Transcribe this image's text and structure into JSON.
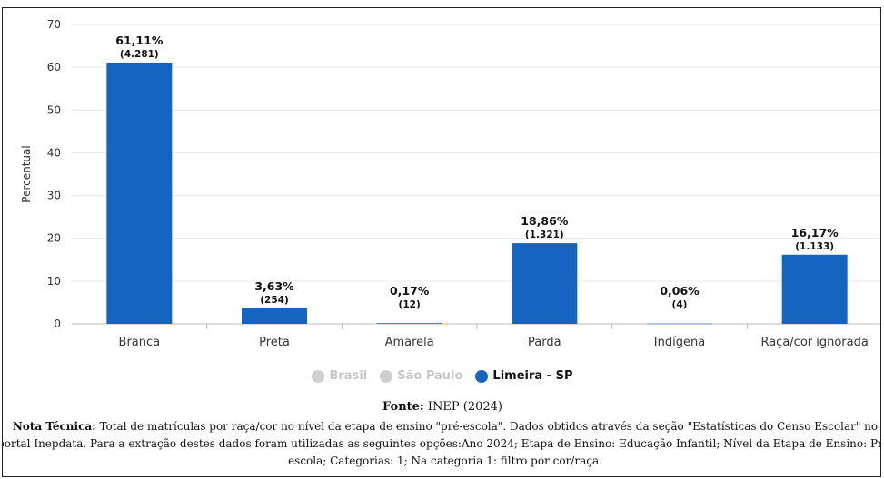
{
  "chart_data": {
    "type": "bar",
    "ylabel": "Percentual",
    "ylim": [
      0,
      70
    ],
    "yticks": [
      0,
      10,
      20,
      30,
      40,
      50,
      60,
      70
    ],
    "grid": true,
    "categories": [
      "Branca",
      "Preta",
      "Amarela",
      "Parda",
      "Indígena",
      "Raça/cor ignorada"
    ],
    "series": [
      {
        "name": "Limeira - SP",
        "color": "#1565c0",
        "values": [
          61.11,
          3.63,
          0.17,
          18.86,
          0.06,
          16.17
        ],
        "value_labels": [
          "61,11%",
          "3,63%",
          "0,17%",
          "18,86%",
          "0,06%",
          "16,17%"
        ],
        "count_labels": [
          "(4.281)",
          "(254)",
          "(12)",
          "(1.321)",
          "(4)",
          "(1.133)"
        ]
      }
    ],
    "legend": [
      {
        "name": "Brasil",
        "color": "#cfcfcf",
        "active": false
      },
      {
        "name": "São Paulo",
        "color": "#cfcfcf",
        "active": false
      },
      {
        "name": "Limeira - SP",
        "color": "#1565c0",
        "active": true
      }
    ],
    "legend_placement": "bottom-center"
  },
  "source": {
    "label": "Fonte:",
    "text": "INEP (2024)"
  },
  "note": {
    "label": "Nota Técnica:",
    "text": "Total de matrículas por raça/cor no nível da etapa de ensino \"pré-escola\". Dados obtidos através da seção \"Estatísticas do Censo Escolar\" no portal Inepdata. Para a extração destes dados foram utilizadas as seguintes opções:Ano 2024; Etapa de Ensino: Educação Infantil; Nível da Etapa de Ensino: Pré-escola; Categorias: 1; Na categoria 1: filtro por cor/raça."
  }
}
